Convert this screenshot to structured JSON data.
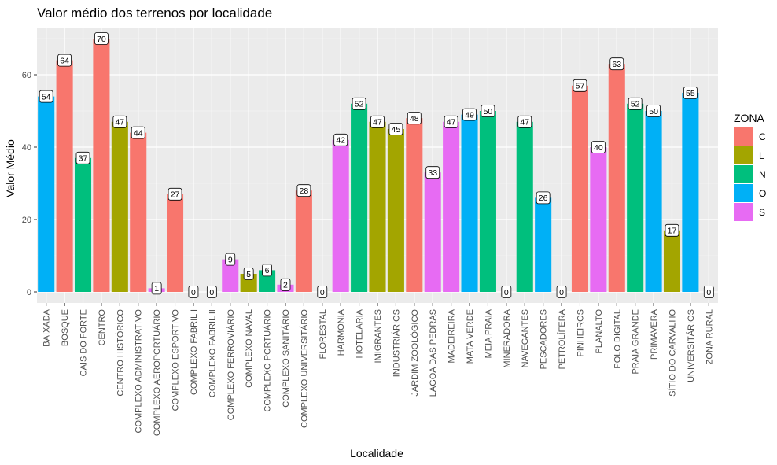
{
  "chart_data": {
    "type": "bar",
    "title": "Valor médio dos terrenos por localidade",
    "xlabel": "Localidade",
    "ylabel": "Valor Médio",
    "ylim": [
      0,
      72
    ],
    "yticks": [
      0,
      20,
      40,
      60
    ],
    "grid": true,
    "legend": {
      "title": "ZONA",
      "placement": "right",
      "entries": [
        {
          "key": "C",
          "label": "C",
          "color": "#F8766D"
        },
        {
          "key": "L",
          "label": "L",
          "color": "#A3A500"
        },
        {
          "key": "N",
          "label": "N",
          "color": "#00BF7D"
        },
        {
          "key": "O",
          "label": "O",
          "color": "#00B0F6"
        },
        {
          "key": "S",
          "label": "S",
          "color": "#E76BF3"
        }
      ]
    },
    "bars": [
      {
        "category": "BAIXADA",
        "zone": "O",
        "value": 54,
        "label": "54"
      },
      {
        "category": "BOSQUE",
        "zone": "C",
        "value": 64,
        "label": "64"
      },
      {
        "category": "CAIS DO FORTE",
        "zone": "N",
        "value": 37,
        "label": "37"
      },
      {
        "category": "CENTRO",
        "zone": "C",
        "value": 70,
        "label": "70"
      },
      {
        "category": "CENTRO HISTÓRICO",
        "zone": "L",
        "value": 47,
        "label": "47"
      },
      {
        "category": "COMPLEXO ADMINISTRATIVO",
        "zone": "C",
        "value": 44,
        "label": "44"
      },
      {
        "category": "COMPLEXO AEROPORTUÁRIO",
        "zone": "S",
        "value": 1,
        "label": "1"
      },
      {
        "category": "COMPLEXO ESPORTIVO",
        "zone": "C",
        "value": 27,
        "label": "27"
      },
      {
        "category": "COMPLEXO FABRIL I",
        "zone": "C",
        "value": 0,
        "label": "0"
      },
      {
        "category": "COMPLEXO FABRIL II",
        "zone": "C",
        "value": 0,
        "label": "0"
      },
      {
        "category": "COMPLEXO FERROVIÁRIO",
        "zone": "S",
        "value": 9,
        "label": "9"
      },
      {
        "category": "COMPLEXO NAVAL",
        "zone": "L",
        "value": 5,
        "label": "5"
      },
      {
        "category": "COMPLEXO PORTUÁRIO",
        "zone": "N",
        "value": 6,
        "label": "6"
      },
      {
        "category": "COMPLEXO SANITÁRIO",
        "zone": "S",
        "value": 2,
        "label": "2"
      },
      {
        "category": "COMPLEXO UNIVERSITÁRIO",
        "zone": "C",
        "value": 28,
        "label": "28"
      },
      {
        "category": "FLORESTAL",
        "zone": "C",
        "value": 0,
        "label": "0"
      },
      {
        "category": "HARMONIA",
        "zone": "S",
        "value": 42,
        "label": "42"
      },
      {
        "category": "HOTELARIA",
        "zone": "N",
        "value": 52,
        "label": "52"
      },
      {
        "category": "IMIGRANTES",
        "zone": "L",
        "value": 47,
        "label": "47"
      },
      {
        "category": "INDUSTRIÁRIOS",
        "zone": "L",
        "value": 45,
        "label": "45"
      },
      {
        "category": "JARDIM ZOOLÓGICO",
        "zone": "C",
        "value": 48,
        "label": "48"
      },
      {
        "category": "LAGOA DAS PEDRAS",
        "zone": "S",
        "value": 33,
        "label": "33"
      },
      {
        "category": "MADEIREIRA",
        "zone": "S",
        "value": 47,
        "label": "47"
      },
      {
        "category": "MATA VERDE",
        "zone": "O",
        "value": 49,
        "label": "49"
      },
      {
        "category": "MEIA PRAIA",
        "zone": "N",
        "value": 50,
        "label": "50"
      },
      {
        "category": "MINERADORA",
        "zone": "C",
        "value": 0,
        "label": "0"
      },
      {
        "category": "NAVEGANTES",
        "zone": "N",
        "value": 47,
        "label": "47"
      },
      {
        "category": "PESCADORES",
        "zone": "O",
        "value": 26,
        "label": "26"
      },
      {
        "category": "PETROLÍFERA",
        "zone": "C",
        "value": 0,
        "label": "0"
      },
      {
        "category": "PINHEIROS",
        "zone": "C",
        "value": 57,
        "label": "57"
      },
      {
        "category": "PLANALTO",
        "zone": "S",
        "value": 40,
        "label": "40"
      },
      {
        "category": "POLO DIGITAL",
        "zone": "C",
        "value": 63,
        "label": "63"
      },
      {
        "category": "PRAIA GRANDE",
        "zone": "N",
        "value": 52,
        "label": "52"
      },
      {
        "category": "PRIMAVERA",
        "zone": "O",
        "value": 50,
        "label": "50"
      },
      {
        "category": "SÍTIO DO CARVALHO",
        "zone": "L",
        "value": 17,
        "label": "17"
      },
      {
        "category": "UNIVERSITÁRIOS",
        "zone": "O",
        "value": 55,
        "label": "55"
      },
      {
        "category": "ZONA RURAL",
        "zone": "C",
        "value": 0,
        "label": "0"
      }
    ]
  }
}
